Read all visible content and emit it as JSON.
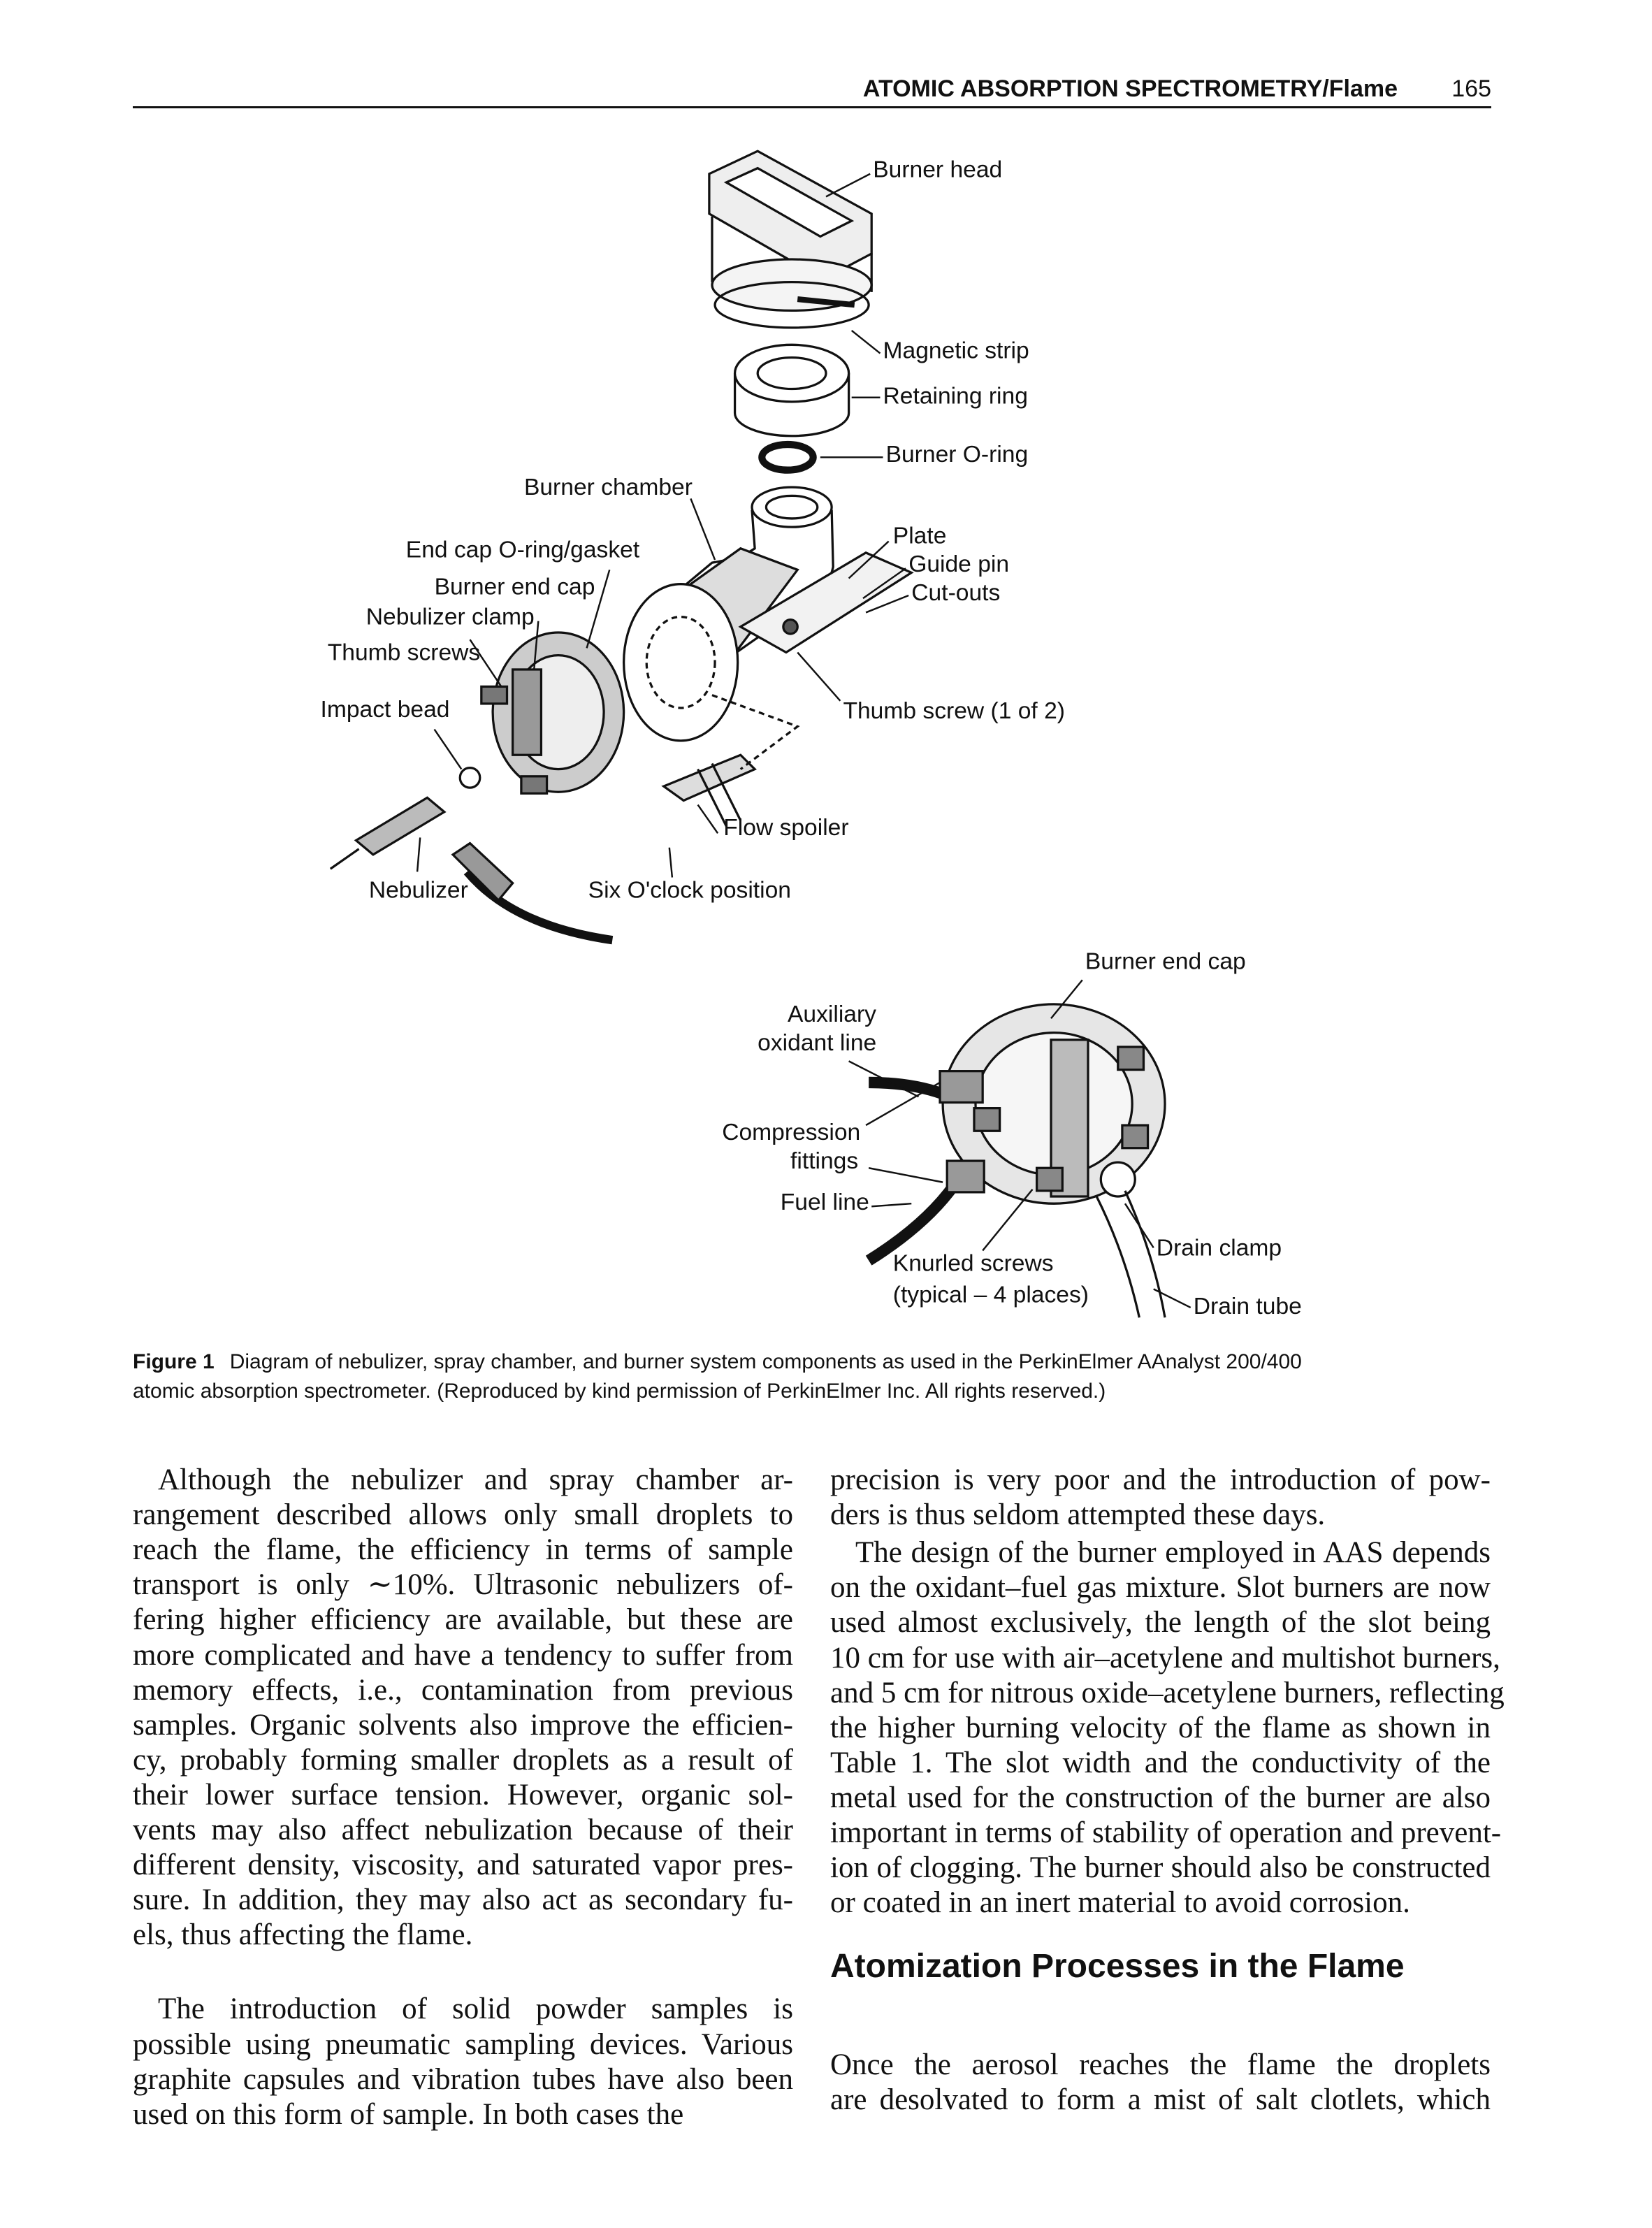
{
  "header": {
    "title": "ATOMIC ABSORPTION SPECTROMETRY/Flame",
    "page": "165"
  },
  "figure": {
    "labels": [
      "Burner head",
      "Magnetic strip",
      "Retaining ring",
      "Burner O-ring",
      "Burner chamber",
      "End cap O-ring/gasket",
      "Burner end cap",
      "Nebulizer clamp",
      "Thumb screws",
      "Impact bead",
      "Plate",
      "Guide pin",
      "Cut-outs",
      "Thumb screw (1 of 2)",
      "Flow spoiler",
      "Nebulizer",
      "Six O'clock position",
      "Burner end cap",
      "Auxiliary",
      "oxidant line",
      "Compression",
      "fittings",
      "Fuel line",
      "Knurled screws",
      "(typical – 4 places)",
      "Drain clamp",
      "Drain tube"
    ],
    "caption": {
      "label": "Figure 1",
      "lines": [
        "Diagram of nebulizer, spray chamber, and burner system components as used in the PerkinElmer AAnalyst 200/400",
        "atomic absorption spectrometer. (Reproduced by kind permission of PerkinElmer Inc. All rights reserved.)"
      ]
    }
  },
  "columns": [
    {
      "paragraphs": [
        {
          "lines": [
            "Although the nebulizer and spray chamber ar-",
            "rangement described allows only small droplets to",
            "reach the flame, the efficiency in terms of sample",
            "transport is only ∼10%. Ultrasonic nebulizers of-",
            "fering higher efficiency are available, but these are",
            "more complicated and have a tendency to suffer from",
            "memory effects, i.e., contamination from previous",
            "samples. Organic solvents also improve the efficien-",
            "cy, probably forming smaller droplets as a result of",
            "their lower surface tension. However, organic sol-",
            "vents may also affect nebulization because of their",
            "different density, viscosity, and saturated vapor pres-",
            "sure. In addition, they may also act as secondary fu-",
            "els, thus affecting the flame."
          ]
        },
        {
          "lines": [
            "The introduction of solid powder samples is",
            "possible using pneumatic sampling devices. Various",
            "graphite capsules and vibration tubes have also been",
            "used on this form of sample. In both cases the"
          ]
        }
      ]
    },
    {
      "paragraphs": [
        {
          "lines": [
            "precision is very poor and the introduction of pow-",
            "ders is thus seldom attempted these days."
          ]
        },
        {
          "lines": [
            "The design of the burner employed in AAS depends",
            "on the oxidant–fuel gas mixture. Slot burners are now",
            "used almost exclusively, the length of the slot being",
            "10 cm for use with air–acetylene and multishot burners,",
            "and 5 cm for nitrous oxide–acetylene burners, reflecting",
            "the higher burning velocity of the flame as shown in",
            "Table 1. The slot width and the conductivity of the",
            "metal used for the construction of the burner are also",
            "important in terms of stability of operation and prevent-",
            "ion of clogging. The burner should also be constructed",
            "or coated in an inert material to avoid corrosion."
          ]
        }
      ]
    }
  ],
  "section": {
    "heading": "Atomization Processes in the Flame",
    "lines": [
      "Once the aerosol reaches the flame the droplets",
      "are desolvated to form a mist of salt clotlets, which"
    ]
  }
}
